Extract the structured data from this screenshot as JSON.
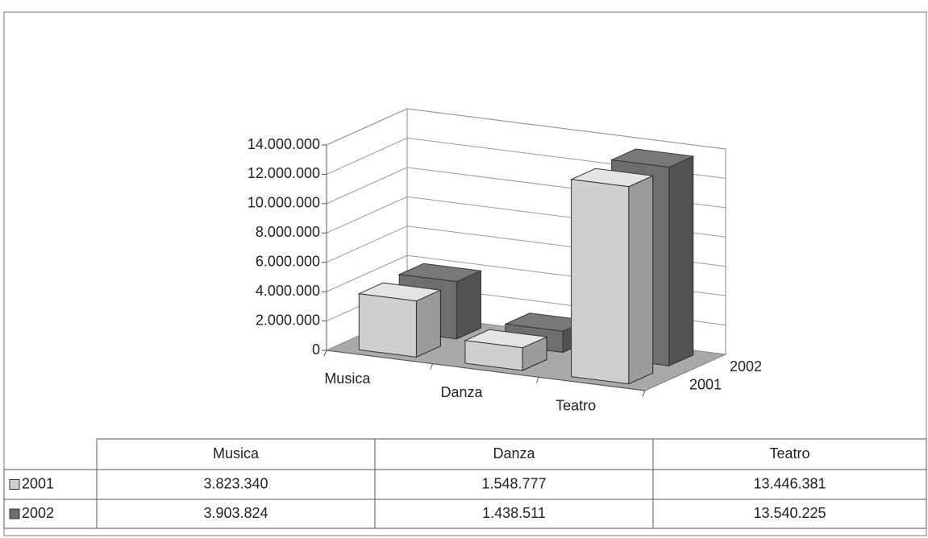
{
  "chart_data": {
    "type": "bar",
    "categories": [
      "Musica",
      "Danza",
      "Teatro"
    ],
    "series": [
      {
        "name": "2001",
        "color": "#cfcfcf",
        "values": [
          3823340,
          1548777,
          13446381
        ],
        "value_labels": [
          "3.823.340",
          "1.548.777",
          "13.446.381"
        ]
      },
      {
        "name": "2002",
        "color": "#6e6e6e",
        "values": [
          3903824,
          1438511,
          13540225
        ],
        "value_labels": [
          "3.903.824",
          "1.438.511",
          "13.540.225"
        ]
      }
    ],
    "ylim": [
      0,
      14000000
    ],
    "yticks": [
      0,
      {
        "value": 2000000,
        "label": "2.000.000"
      },
      {
        "value": 4000000,
        "label": "4.000.000"
      },
      {
        "value": 6000000,
        "label": "6.000.000"
      },
      {
        "value": 8000000,
        "label": "8.000.000"
      },
      {
        "value": 10000000,
        "label": "10.000.000"
      },
      {
        "value": 12000000,
        "label": "12.000.000"
      },
      {
        "value": 14000000,
        "label": "14.000.000"
      }
    ],
    "grid": true
  }
}
